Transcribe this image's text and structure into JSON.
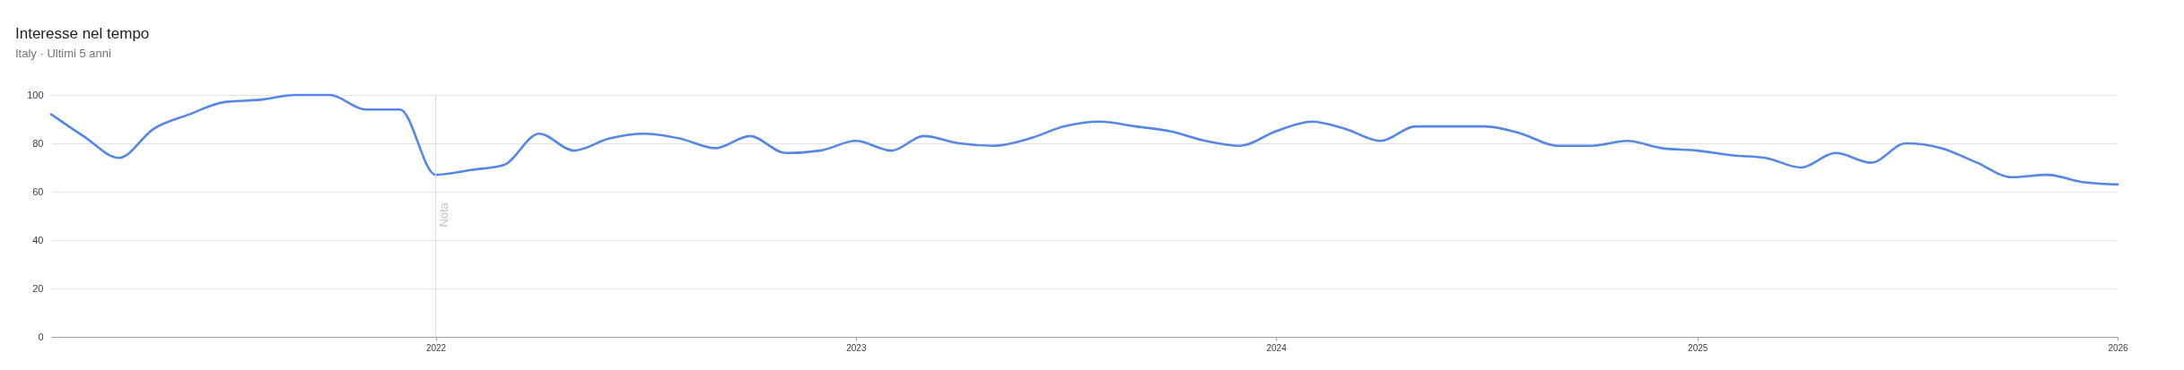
{
  "chart_data": {
    "type": "line",
    "title": "Interesse nel tempo",
    "subtitle": "Italy · Ultimi 5 anni",
    "x": [
      "2021-02",
      "2021-03",
      "2021-04",
      "2021-05",
      "2021-06",
      "2021-07",
      "2021-08",
      "2021-09",
      "2021-10",
      "2021-11",
      "2021-12",
      "2022-01",
      "2022-02",
      "2022-03",
      "2022-04",
      "2022-05",
      "2022-06",
      "2022-07",
      "2022-08",
      "2022-09",
      "2022-10",
      "2022-11",
      "2022-12",
      "2023-01",
      "2023-02",
      "2023-03",
      "2023-04",
      "2023-05",
      "2023-06",
      "2023-07",
      "2023-08",
      "2023-09",
      "2023-10",
      "2023-11",
      "2023-12",
      "2024-01",
      "2024-02",
      "2024-03",
      "2024-04",
      "2024-05",
      "2024-06",
      "2024-07",
      "2024-08",
      "2024-09",
      "2024-10",
      "2024-11",
      "2024-12",
      "2025-01",
      "2025-02",
      "2025-03",
      "2025-04",
      "2025-05",
      "2025-06",
      "2025-07",
      "2025-08",
      "2025-09",
      "2025-10",
      "2025-11",
      "2025-12",
      "2026-01"
    ],
    "series": [
      {
        "color": "#5687e4",
        "values": [
          92,
          83,
          74,
          86,
          92,
          97,
          98,
          100,
          100,
          94,
          94,
          67,
          69,
          71,
          84,
          77,
          82,
          84,
          82,
          78,
          83,
          76,
          77,
          81,
          77,
          83,
          80,
          79,
          82,
          87,
          89,
          87,
          85,
          81,
          79,
          85,
          89,
          86,
          81,
          87,
          87,
          87,
          84,
          79,
          79,
          81,
          78,
          77,
          75,
          74,
          70,
          76,
          72,
          80,
          78,
          72,
          66,
          67,
          64,
          63
        ]
      }
    ],
    "xlim": [
      "2021-02",
      "2026-01"
    ],
    "xticks": [
      "2022",
      "2023",
      "2024",
      "2025",
      "2026"
    ],
    "ylim": [
      0,
      100
    ],
    "yticks": [
      0,
      20,
      40,
      60,
      80,
      100
    ],
    "grid": "y",
    "marker": "none",
    "line_style": "solid",
    "ref_lines": [
      {
        "axis": "x",
        "value": "2022",
        "label": "Nota",
        "color": "#dadce0"
      }
    ]
  }
}
